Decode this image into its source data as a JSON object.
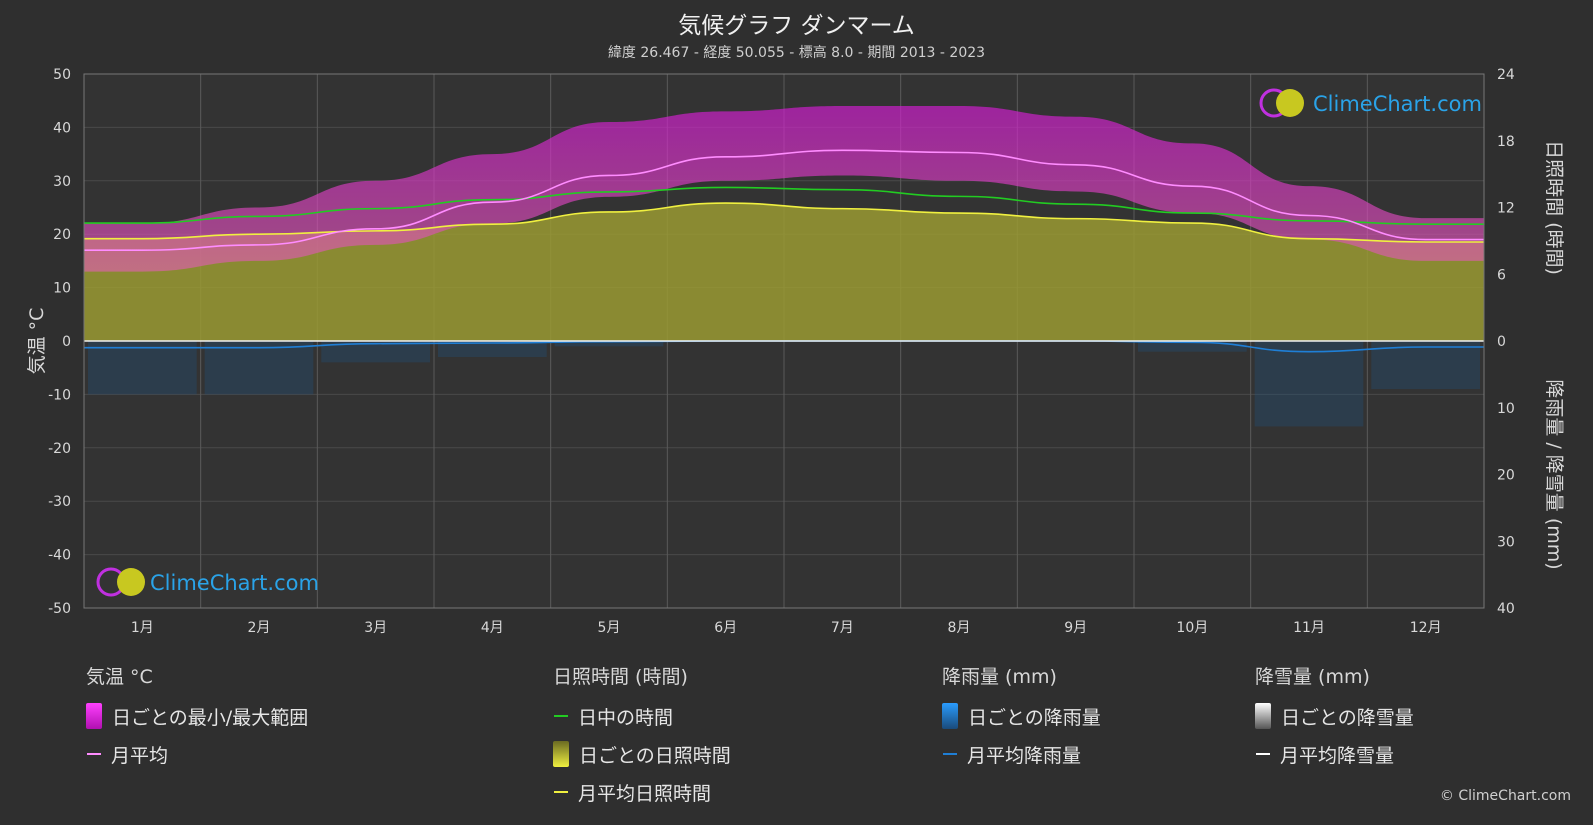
{
  "title": "気候グラフ ダンマーム",
  "subtitle": "緯度 26.467 - 経度 50.055 - 標高 8.0 - 期間 2013 - 2023",
  "copyright": "© ClimeChart.com",
  "watermark": "ClimeChart.com",
  "colors": {
    "background": "#2f2f2f",
    "temp_range": "#e020e0",
    "temp_avg": "#ff8cff",
    "daylight": "#22cc22",
    "sunshine_fill": "#9a9a32",
    "sunshine_avg": "#f0f040",
    "rain": "#1f7fd6",
    "snow": "#ffffff"
  },
  "chart_data": {
    "type": "area",
    "months": [
      "1月",
      "2月",
      "3月",
      "4月",
      "5月",
      "6月",
      "7月",
      "8月",
      "9月",
      "10月",
      "11月",
      "12月"
    ],
    "left_axis": {
      "label": "気温 °C",
      "range": [
        -50,
        50
      ],
      "ticks": [
        50,
        40,
        30,
        20,
        10,
        0,
        -10,
        -20,
        -30,
        -40,
        -50
      ]
    },
    "right_axis_top": {
      "label": "日照時間 (時間)",
      "range": [
        0,
        24
      ],
      "ticks": [
        24,
        18,
        12,
        6,
        0
      ]
    },
    "right_axis_bottom": {
      "label": "降雨量 / 降雪量 (mm)",
      "range": [
        0,
        40
      ],
      "ticks": [
        0,
        10,
        20,
        30,
        40
      ]
    },
    "grid": true,
    "series": [
      {
        "name": "日ごとの最小/最大範囲",
        "unit": "°C",
        "min": [
          13,
          15,
          18,
          22,
          27,
          30,
          31,
          30,
          28,
          24,
          19,
          15
        ],
        "max": [
          22,
          25,
          30,
          35,
          41,
          43,
          44,
          44,
          42,
          37,
          29,
          23
        ]
      },
      {
        "name": "月平均",
        "unit": "°C",
        "values": [
          17,
          18,
          21,
          26,
          31,
          34.5,
          35.7,
          35.3,
          33,
          29,
          23.5,
          19
        ]
      },
      {
        "name": "日中の時間",
        "unit": "時間",
        "values": [
          10.6,
          11.2,
          11.9,
          12.7,
          13.4,
          13.8,
          13.6,
          13.0,
          12.3,
          11.5,
          10.8,
          10.5
        ]
      },
      {
        "name": "月平均日照時間",
        "unit": "時間",
        "values": [
          9.2,
          9.6,
          9.9,
          10.5,
          11.6,
          12.4,
          11.9,
          11.5,
          11.0,
          10.6,
          9.2,
          8.9
        ]
      },
      {
        "name": "月平均降雨量",
        "unit": "mm",
        "values": [
          1.0,
          1.0,
          0.4,
          0.3,
          0.1,
          0.0,
          0.0,
          0.0,
          0.0,
          0.2,
          1.6,
          0.9
        ]
      },
      {
        "name": "月平均降雪量",
        "unit": "mm",
        "values": [
          0,
          0,
          0,
          0,
          0,
          0,
          0,
          0,
          0,
          0,
          0,
          0
        ]
      }
    ]
  },
  "legend": {
    "temperature": {
      "title": "気温 °C",
      "items": [
        "日ごとの最小/最大範囲",
        "月平均"
      ]
    },
    "sunshine": {
      "title": "日照時間 (時間)",
      "items": [
        "日中の時間",
        "日ごとの日照時間",
        "月平均日照時間"
      ]
    },
    "rain": {
      "title": "降雨量 (mm)",
      "items": [
        "日ごとの降雨量",
        "月平均降雨量"
      ]
    },
    "snow": {
      "title": "降雪量 (mm)",
      "items": [
        "日ごとの降雪量",
        "月平均降雪量"
      ]
    }
  }
}
